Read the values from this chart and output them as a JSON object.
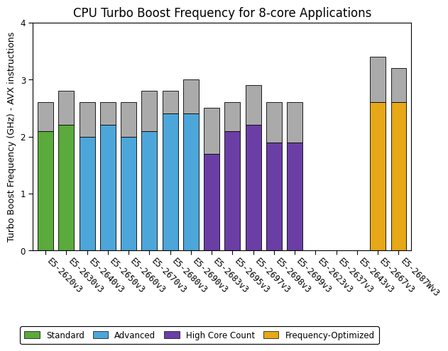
{
  "title": "CPU Turbo Boost Frequency for 8-core Applications",
  "ylabel": "Turbo Boost Frequency (GHz) - AVX instructions",
  "ylim": [
    0,
    4
  ],
  "yticks": [
    0,
    1,
    2,
    3,
    4
  ],
  "bars": [
    {
      "label": "E5-2620v3",
      "base": 2.1,
      "total": 2.6,
      "color": "#5aaa3c",
      "segment": "Standard"
    },
    {
      "label": "E5-2630v3",
      "base": 2.2,
      "total": 2.8,
      "color": "#5aaa3c",
      "segment": "Standard"
    },
    {
      "label": "E5-2640v3",
      "base": 2.0,
      "total": 2.6,
      "color": "#4da6d9",
      "segment": "Advanced"
    },
    {
      "label": "E5-2650v3",
      "base": 2.2,
      "total": 2.6,
      "color": "#4da6d9",
      "segment": "Advanced"
    },
    {
      "label": "E5-2660v3",
      "base": 2.0,
      "total": 2.6,
      "color": "#4da6d9",
      "segment": "Advanced"
    },
    {
      "label": "E5-2670v3",
      "base": 2.1,
      "total": 2.8,
      "color": "#4da6d9",
      "segment": "Advanced"
    },
    {
      "label": "E5-2680v3",
      "base": 2.4,
      "total": 2.8,
      "color": "#4da6d9",
      "segment": "Advanced"
    },
    {
      "label": "E5-2690v3",
      "base": 2.4,
      "total": 3.0,
      "color": "#4da6d9",
      "segment": "Advanced"
    },
    {
      "label": "E5-2683v3",
      "base": 1.7,
      "total": 2.5,
      "color": "#6b3ea6",
      "segment": "High Core Count"
    },
    {
      "label": "E5-2695v3",
      "base": 2.1,
      "total": 2.6,
      "color": "#6b3ea6",
      "segment": "High Core Count"
    },
    {
      "label": "E5-2697v3",
      "base": 2.2,
      "total": 2.9,
      "color": "#6b3ea6",
      "segment": "High Core Count"
    },
    {
      "label": "E5-2698v3",
      "base": 1.9,
      "total": 2.6,
      "color": "#6b3ea6",
      "segment": "High Core Count"
    },
    {
      "label": "E5-2699v3",
      "base": 1.9,
      "total": 2.6,
      "color": "#6b3ea6",
      "segment": "High Core Count"
    },
    {
      "label": "E5-2623v3",
      "base": 0.0,
      "total": 0.0,
      "color": "#ffffff",
      "segment": "none"
    },
    {
      "label": "E5-2637v3",
      "base": 0.0,
      "total": 0.0,
      "color": "#ffffff",
      "segment": "none"
    },
    {
      "label": "E5-2643v3",
      "base": 0.0,
      "total": 0.0,
      "color": "#ffffff",
      "segment": "none"
    },
    {
      "label": "E5-2667v3",
      "base": 2.6,
      "total": 3.4,
      "color": "#e6a817",
      "segment": "Frequency-Optimized"
    },
    {
      "label": "E5-2687Wv3",
      "base": 2.6,
      "total": 3.2,
      "color": "#e6a817",
      "segment": "Frequency-Optimized"
    }
  ],
  "gray_color": "#aaaaaa",
  "legend": [
    {
      "label": "Standard",
      "color": "#5aaa3c"
    },
    {
      "label": "Advanced",
      "color": "#4da6d9"
    },
    {
      "label": "High Core Count",
      "color": "#6b3ea6"
    },
    {
      "label": "Frequency-Optimized",
      "color": "#e6a817"
    }
  ],
  "bar_width": 0.75,
  "background_color": "#ffffff",
  "title_fontsize": 12,
  "label_fontsize": 9,
  "tick_fontsize": 8.5
}
